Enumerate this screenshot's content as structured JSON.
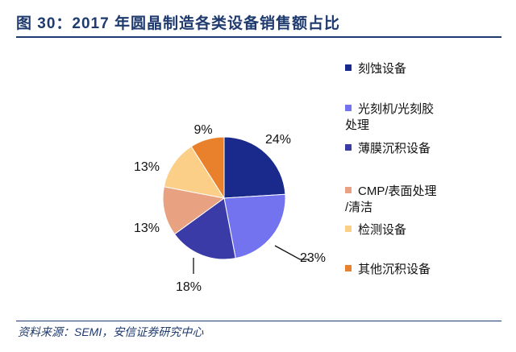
{
  "chart_data": {
    "type": "pie",
    "title": "图 30：2017 年圆晶制造各类设备销售额占比",
    "source": "资料来源：SEMI，安信证券研究中心",
    "legend_position": "right",
    "slices": [
      {
        "label": "刻蚀设备",
        "value": 24,
        "data_label": "24%",
        "color": "#1a2a8c"
      },
      {
        "label": "光刻机/光刻胶处理",
        "value": 23,
        "data_label": "23%",
        "color": "#7373f0"
      },
      {
        "label": "薄膜沉积设备",
        "value": 18,
        "data_label": "18%",
        "color": "#3b3ba8"
      },
      {
        "label": "CMP/表面处理/清洁",
        "value": 13,
        "data_label": "13%",
        "color": "#e8a282"
      },
      {
        "label": "检测设备",
        "value": 13,
        "data_label": "13%",
        "color": "#fbcf88"
      },
      {
        "label": "其他沉积设备",
        "value": 9,
        "data_label": "9%",
        "color": "#e8802c"
      }
    ],
    "legend_lines": [
      [
        "刻蚀设备"
      ],
      [
        "光刻机/光刻胶",
        "处理"
      ],
      [
        "薄膜沉积设备"
      ],
      [
        "CMP/表面处理",
        "/清洁"
      ],
      [
        "检测设备"
      ],
      [
        "其他沉积设备"
      ]
    ]
  }
}
